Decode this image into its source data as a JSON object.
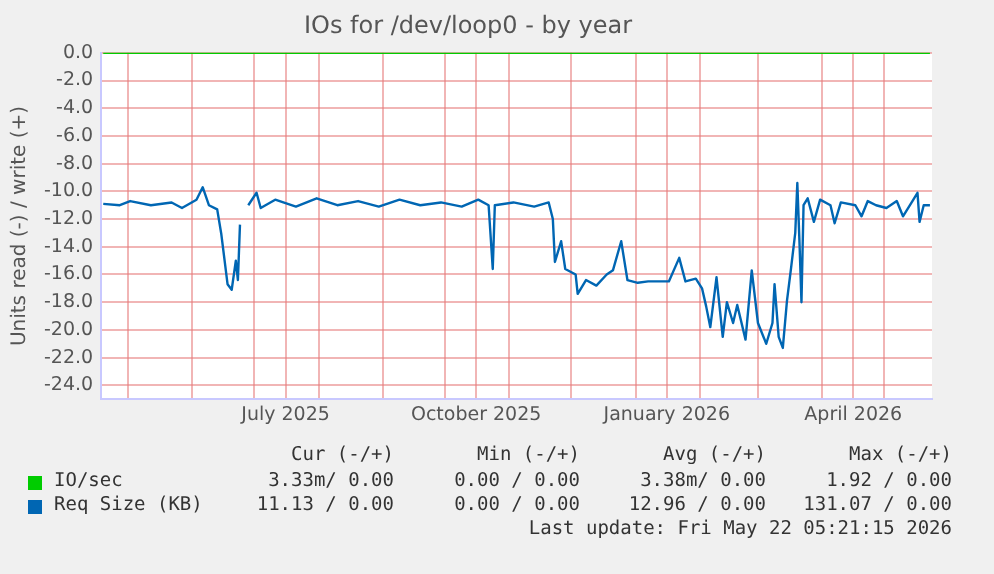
{
  "chart_data": {
    "type": "line",
    "title": "IOs for /dev/loop0 - by year",
    "ylabel": "Units read (-) / write (+)",
    "xlim": [
      "2025-04-18",
      "2026-05-24"
    ],
    "xticks": [
      {
        "value": "2025-05-01",
        "label": null
      },
      {
        "value": "2025-06-01",
        "label": null
      },
      {
        "value": "2025-07-01",
        "label": null
      },
      {
        "value": "2025-07-16",
        "label": "July 2025"
      },
      {
        "value": "2025-08-01",
        "label": null
      },
      {
        "value": "2025-09-01",
        "label": null
      },
      {
        "value": "2025-10-01",
        "label": null
      },
      {
        "value": "2025-10-16",
        "label": "October 2025"
      },
      {
        "value": "2025-11-01",
        "label": null
      },
      {
        "value": "2025-12-01",
        "label": null
      },
      {
        "value": "2026-01-01",
        "label": null
      },
      {
        "value": "2026-01-16",
        "label": "January 2026"
      },
      {
        "value": "2026-02-01",
        "label": null
      },
      {
        "value": "2026-03-01",
        "label": null
      },
      {
        "value": "2026-04-01",
        "label": null
      },
      {
        "value": "2026-04-16",
        "label": "April 2026"
      },
      {
        "value": "2026-05-01",
        "label": null
      }
    ],
    "ylim": [
      -25,
      0
    ],
    "yticks": [
      {
        "value": 0,
        "label": "0.0"
      },
      {
        "value": -2,
        "label": "-2.0"
      },
      {
        "value": -4,
        "label": "-4.0"
      },
      {
        "value": -6,
        "label": "-6.0"
      },
      {
        "value": -8,
        "label": "-8.0"
      },
      {
        "value": -10,
        "label": "-10.0"
      },
      {
        "value": -12,
        "label": "-12.0"
      },
      {
        "value": -14,
        "label": "-14.0"
      },
      {
        "value": -16,
        "label": "-16.0"
      },
      {
        "value": -18,
        "label": "-18.0"
      },
      {
        "value": -20,
        "label": "-20.0"
      },
      {
        "value": -22,
        "label": "-22.0"
      },
      {
        "value": -24,
        "label": "-24.0"
      }
    ],
    "grid": true,
    "legend": "bottom",
    "marker": "none",
    "line_style": "solid",
    "series": [
      {
        "name": "IO/sec",
        "color": "#00cc00",
        "x": [
          "2025-04-19",
          "2026-05-23"
        ],
        "values": [
          0,
          0
        ]
      },
      {
        "name": "Req Size (KB)",
        "color": "#0066b3",
        "x": [
          "2025-04-19",
          "2025-04-27",
          "2025-05-02",
          "2025-05-12",
          "2025-05-22",
          "2025-05-27",
          "2025-06-03",
          "2025-06-06",
          "2025-06-09",
          "2025-06-13",
          "2025-06-15",
          "2025-06-18",
          "2025-06-20",
          "2025-06-22",
          "2025-06-23",
          "2025-06-24",
          "2025-06-26",
          "2025-06-28",
          "2025-07-02",
          "2025-07-04",
          "2025-07-11",
          "2025-07-21",
          "2025-07-31",
          "2025-08-10",
          "2025-08-20",
          "2025-08-30",
          "2025-09-09",
          "2025-09-19",
          "2025-09-29",
          "2025-10-09",
          "2025-10-17",
          "2025-10-22",
          "2025-10-24",
          "2025-10-25",
          "2025-11-03",
          "2025-11-13",
          "2025-11-20",
          "2025-11-22",
          "2025-11-23",
          "2025-11-26",
          "2025-11-28",
          "2025-12-03",
          "2025-12-04",
          "2025-12-08",
          "2025-12-13",
          "2025-12-18",
          "2025-12-21",
          "2025-12-25",
          "2025-12-28",
          "2026-01-02",
          "2026-01-07",
          "2026-01-17",
          "2026-01-22",
          "2026-01-25",
          "2026-01-30",
          "2026-02-02",
          "2026-02-04",
          "2026-02-06",
          "2026-02-09",
          "2026-02-12",
          "2026-02-14",
          "2026-02-17",
          "2026-02-19",
          "2026-02-23",
          "2026-02-26",
          "2026-03-01",
          "2026-03-05",
          "2026-03-08",
          "2026-03-09",
          "2026-03-11",
          "2026-03-13",
          "2026-03-15",
          "2026-03-17",
          "2026-03-19",
          "2026-03-20",
          "2026-03-21",
          "2026-03-22",
          "2026-03-23",
          "2026-03-25",
          "2026-03-28",
          "2026-03-31",
          "2026-04-05",
          "2026-04-07",
          "2026-04-10",
          "2026-04-17",
          "2026-04-20",
          "2026-04-23",
          "2026-04-27",
          "2026-05-02",
          "2026-05-07",
          "2026-05-10",
          "2026-05-15",
          "2026-05-17",
          "2026-05-18",
          "2026-05-20",
          "2026-05-23"
        ],
        "values": [
          -10.9,
          -11.0,
          -10.7,
          -11.0,
          -10.8,
          -11.2,
          -10.6,
          -9.7,
          -11.0,
          -11.3,
          -13.1,
          -16.7,
          -17.1,
          -15.0,
          -16.4,
          -12.4,
          null,
          -11.0,
          -10.1,
          -11.2,
          -10.6,
          -11.1,
          -10.5,
          -11.0,
          -10.7,
          -11.1,
          -10.6,
          -11.0,
          -10.8,
          -11.1,
          -10.6,
          -11.0,
          -15.6,
          -11.0,
          -10.8,
          -11.1,
          -10.8,
          -12.0,
          -15.1,
          -13.6,
          -15.6,
          -16.0,
          -17.4,
          -16.4,
          -16.8,
          -16.0,
          -15.7,
          -13.6,
          -16.4,
          -16.6,
          -16.5,
          -16.5,
          -14.8,
          -16.5,
          -16.3,
          -17.0,
          -18.3,
          -19.8,
          -16.2,
          -20.5,
          -18.0,
          -19.5,
          -18.2,
          -20.7,
          -15.7,
          -19.5,
          -21.0,
          -19.5,
          -16.7,
          -20.5,
          -21.3,
          -17.9,
          -15.5,
          -13.0,
          -9.4,
          -13.5,
          -18.0,
          -11.0,
          -10.5,
          -12.2,
          -10.6,
          -11.0,
          -12.3,
          -10.8,
          -11.0,
          -11.8,
          -10.7,
          -11.0,
          -11.2,
          -10.7,
          -11.8,
          -10.6,
          -10.1,
          -12.2,
          -11.0,
          -11.0
        ]
      }
    ],
    "annotations": [
      "Cur (-/+)",
      "Min (-/+)",
      "Avg (-/+)",
      "Max (-/+)",
      "3.33m/ 0.00",
      "0.00 / 0.00",
      "3.38m/ 0.00",
      "1.92 / 0.00",
      "11.13 / 0.00",
      "0.00 / 0.00",
      "12.96 / 0.00",
      "131.07 / 0.00",
      "Last update: Fri May 22 05:21:15 2026"
    ]
  }
}
